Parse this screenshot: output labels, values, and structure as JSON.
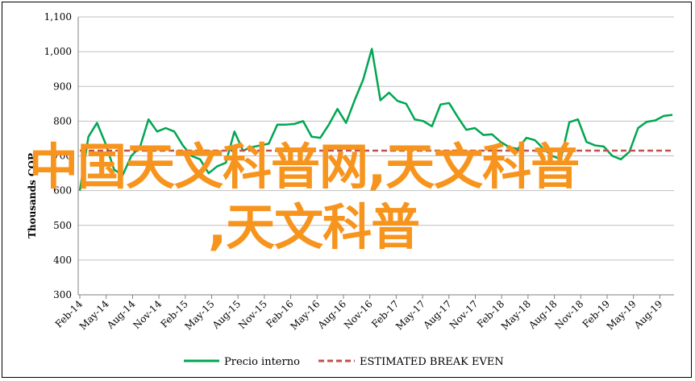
{
  "chart_data": {
    "type": "line",
    "ylabel": "Thousands COP",
    "ylim": [
      300,
      1100
    ],
    "yticks": [
      300,
      400,
      500,
      600,
      700,
      800,
      900,
      1000,
      1100
    ],
    "ytick_labels": [
      "300",
      "400",
      "500",
      "600",
      "700",
      "800",
      "900",
      "1,000",
      "1,100"
    ],
    "grid": true,
    "legend_position": "bottom",
    "xtick_labels": [
      "Feb-14",
      "May-14",
      "Aug-14",
      "Nov-14",
      "Feb-15",
      "May-15",
      "Aug-15",
      "Nov-15",
      "Feb-16",
      "May-16",
      "Aug-16",
      "Nov-16",
      "Feb-17",
      "May-17",
      "Aug-17",
      "Nov-17",
      "Feb-18",
      "May-18",
      "Aug-18",
      "Nov-18",
      "Feb-19",
      "May-19",
      "Aug-19"
    ],
    "series": [
      {
        "name": "Precio interno",
        "color": "#00a651",
        "style": "solid",
        "values": [
          600,
          755,
          795,
          735,
          660,
          645,
          700,
          725,
          805,
          770,
          780,
          770,
          730,
          700,
          690,
          650,
          670,
          680,
          770,
          715,
          725,
          730,
          735,
          790,
          790,
          792,
          800,
          755,
          752,
          790,
          835,
          795,
          860,
          920,
          1008,
          860,
          882,
          858,
          850,
          805,
          800,
          785,
          848,
          852,
          812,
          775,
          780,
          760,
          762,
          740,
          725,
          720,
          752,
          745,
          720,
          700,
          690,
          797,
          805,
          740,
          730,
          727,
          700,
          690,
          712,
          780,
          798,
          802,
          815,
          818
        ]
      },
      {
        "name": "ESTIMATED BREAK EVEN",
        "color": "#c0504d",
        "style": "dashed",
        "values": [
          715,
          715
        ]
      }
    ]
  },
  "watermark": {
    "line1": "中国天文科普网,天文科普",
    "line2": ",天文科普"
  }
}
